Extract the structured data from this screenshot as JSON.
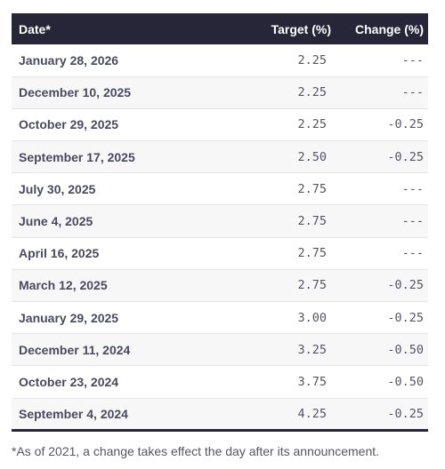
{
  "table": {
    "headers": {
      "date": "Date*",
      "target": "Target (%)",
      "change": "Change (%)"
    },
    "rows": [
      {
        "date": "January 28, 2026",
        "target": "2.25",
        "change": "---"
      },
      {
        "date": "December 10, 2025",
        "target": "2.25",
        "change": "---"
      },
      {
        "date": "October 29, 2025",
        "target": "2.25",
        "change": "-0.25"
      },
      {
        "date": "September 17, 2025",
        "target": "2.50",
        "change": "-0.25"
      },
      {
        "date": "July 30, 2025",
        "target": "2.75",
        "change": "---"
      },
      {
        "date": "June 4, 2025",
        "target": "2.75",
        "change": "---"
      },
      {
        "date": "April 16, 2025",
        "target": "2.75",
        "change": "---"
      },
      {
        "date": "March 12, 2025",
        "target": "2.75",
        "change": "-0.25"
      },
      {
        "date": "January 29, 2025",
        "target": "3.00",
        "change": "-0.25"
      },
      {
        "date": "December 11, 2024",
        "target": "3.25",
        "change": "-0.50"
      },
      {
        "date": "October 23, 2024",
        "target": "3.75",
        "change": "-0.50"
      },
      {
        "date": "September 4, 2024",
        "target": "4.25",
        "change": "-0.25"
      }
    ]
  },
  "footnote": "*As of 2021, a change takes effect the day after its announcement.",
  "colors": {
    "header_bg": "#262638",
    "header_text": "#ffffff",
    "row_alt_bg": "#f7f7f8",
    "date_text": "#4a4a5e"
  }
}
